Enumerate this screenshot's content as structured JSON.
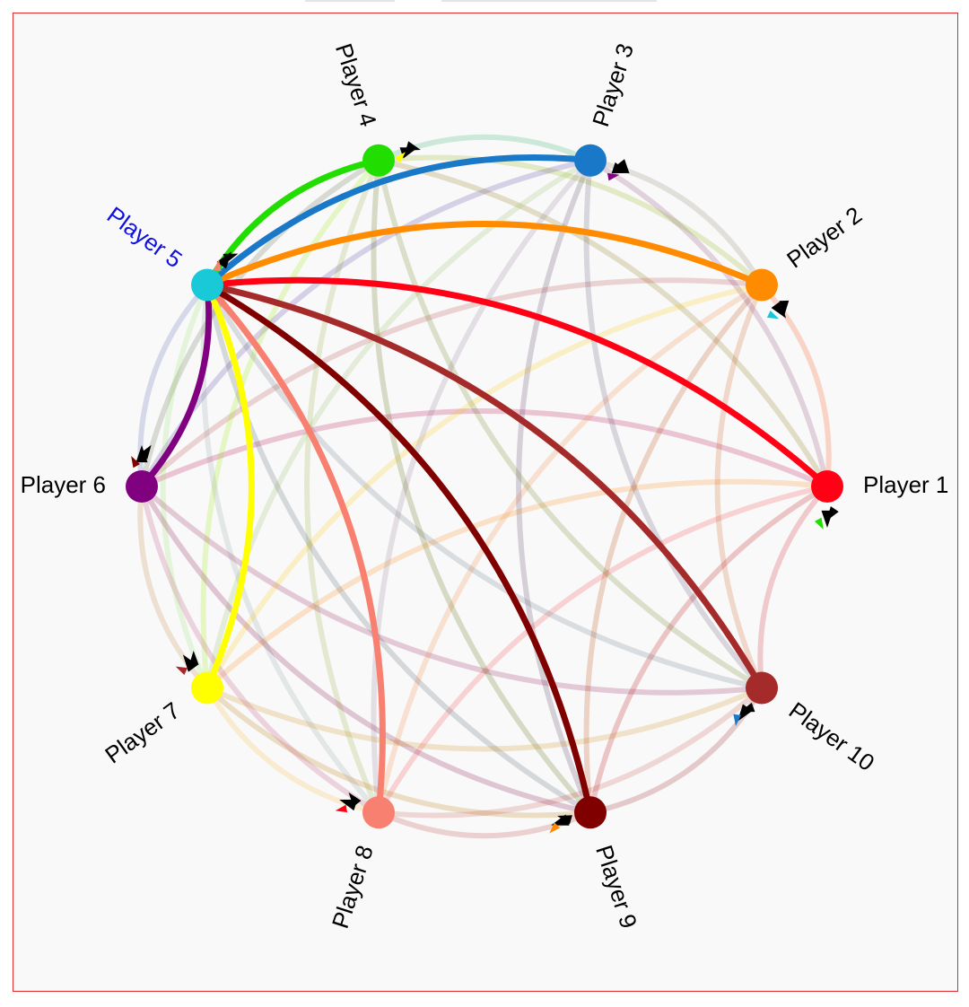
{
  "focused_player": "Player 5",
  "colors": {
    "frame_border": "#e0282d",
    "focused_label": "#1010e0",
    "label": "#000000",
    "marker_dark": "#000000"
  },
  "players": [
    {
      "id": 1,
      "label": "Player 1",
      "color": "#ff0015"
    },
    {
      "id": 2,
      "label": "Player 2",
      "color": "#ff8c00"
    },
    {
      "id": 3,
      "label": "Player 3",
      "color": "#1a78c8"
    },
    {
      "id": 4,
      "label": "Player 4",
      "color": "#22dd00"
    },
    {
      "id": 5,
      "label": "Player 5",
      "color": "#19c9d8"
    },
    {
      "id": 6,
      "label": "Player 6",
      "color": "#800080"
    },
    {
      "id": 7,
      "label": "Player 7",
      "color": "#ffff00"
    },
    {
      "id": 8,
      "label": "Player 8",
      "color": "#f88070"
    },
    {
      "id": 9,
      "label": "Player 9",
      "color": "#800000"
    },
    {
      "id": 10,
      "label": "Player 10",
      "color": "#a52a2a"
    }
  ],
  "highlighted_edges": [
    {
      "from": 1,
      "to": 5
    },
    {
      "from": 2,
      "to": 5
    },
    {
      "from": 3,
      "to": 5
    },
    {
      "from": 4,
      "to": 5
    },
    {
      "from": 6,
      "to": 5
    },
    {
      "from": 7,
      "to": 5
    },
    {
      "from": 8,
      "to": 5
    },
    {
      "from": 9,
      "to": 5
    },
    {
      "from": 10,
      "to": 5
    }
  ]
}
